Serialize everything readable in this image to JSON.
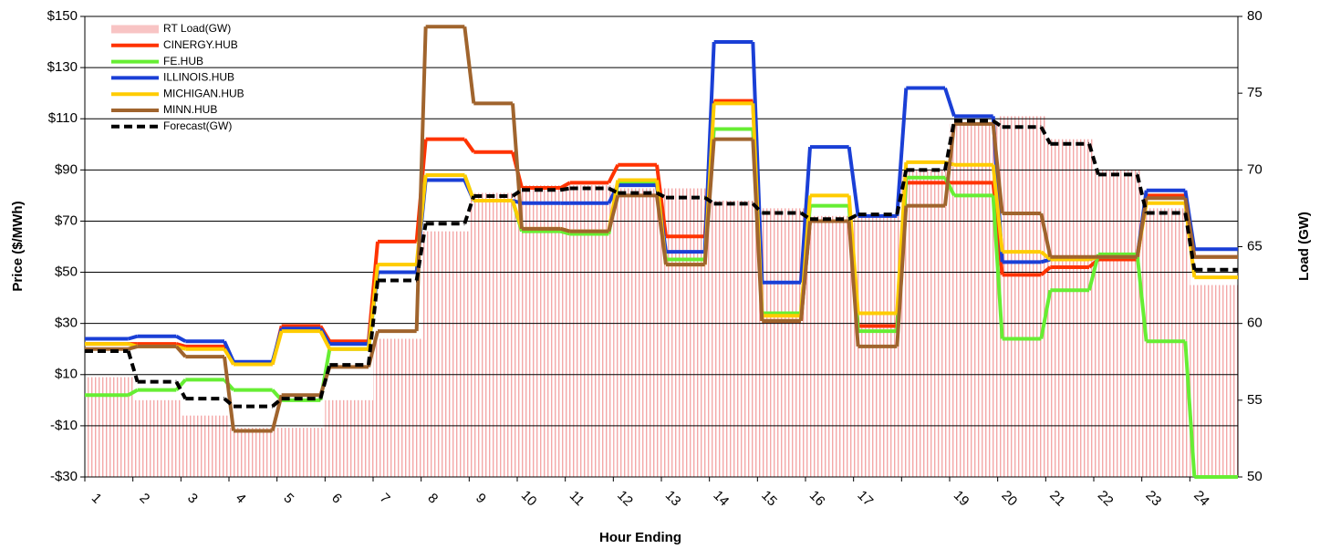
{
  "chart_data": {
    "type": "step",
    "x_label": "Hour Ending",
    "y_label": "Price ($/MWh)",
    "y2_label": "Load (GW)",
    "categories": [
      "1",
      "2",
      "3",
      "4",
      "5",
      "6",
      "7",
      "8",
      "9",
      "10",
      "11",
      "12",
      "13",
      "14",
      "15",
      "16",
      "17",
      null,
      "19",
      "20",
      "21",
      "22",
      "23",
      "24"
    ],
    "ylim": [
      -30,
      150
    ],
    "yticks": [
      {
        "value": -30,
        "label": "-$30"
      },
      {
        "value": -10,
        "label": "-$10"
      },
      {
        "value": 10,
        "label": "$10"
      },
      {
        "value": 30,
        "label": "$30"
      },
      {
        "value": 50,
        "label": "$50"
      },
      {
        "value": 70,
        "label": "$70"
      },
      {
        "value": 90,
        "label": "$90"
      },
      {
        "value": 110,
        "label": "$110"
      },
      {
        "value": 130,
        "label": "$130"
      },
      {
        "value": 150,
        "label": "$150"
      }
    ],
    "y2lim": [
      50,
      80
    ],
    "y2ticks": [
      50,
      55,
      60,
      65,
      70,
      75,
      80
    ],
    "grid": true,
    "legend": "top-left",
    "series": [
      {
        "name": "RT Load(GW)",
        "color": "#f2a0a0",
        "style": "bars",
        "axis": "y2",
        "values": [
          56.5,
          55,
          54,
          53.2,
          53.2,
          55,
          59,
          66,
          68.5,
          69,
          69,
          68.8,
          68.8,
          68,
          67.5,
          67,
          67,
          70,
          73,
          73.5,
          72,
          70,
          67.5,
          62.5
        ]
      },
      {
        "name": "CINERGY.HUB",
        "color": "#ff3300",
        "style": "solid",
        "values": [
          22,
          22,
          21,
          14,
          29,
          23,
          62,
          102,
          97,
          83,
          85,
          92,
          64,
          117,
          31,
          70,
          29,
          85,
          85,
          49,
          52,
          55,
          80,
          56
        ]
      },
      {
        "name": "FE.HUB",
        "color": "#66ee33",
        "style": "solid",
        "values": [
          2,
          4,
          8,
          4,
          0,
          20,
          50,
          88,
          78,
          66,
          65,
          85,
          55,
          106,
          34,
          76,
          27,
          87,
          80,
          24,
          43,
          57,
          23,
          -30
        ]
      },
      {
        "name": "ILLINOIS.HUB",
        "color": "#1a3fd6",
        "style": "solid",
        "values": [
          24,
          25,
          23,
          15,
          28,
          22,
          50,
          86,
          78,
          77,
          77,
          84,
          58,
          140,
          46,
          99,
          72,
          122,
          111,
          54,
          55,
          56,
          82,
          59
        ]
      },
      {
        "name": "MICHIGAN.HUB",
        "color": "#ffcc00",
        "style": "solid",
        "values": [
          22,
          21,
          20,
          14,
          27,
          20,
          53,
          88,
          78,
          67,
          66,
          86,
          53,
          116,
          33,
          80,
          34,
          93,
          92,
          58,
          55,
          56,
          77,
          48
        ]
      },
      {
        "name": "MINN.HUB",
        "color": "#a0642d",
        "style": "solid",
        "values": [
          20,
          21,
          17,
          -12,
          2,
          13,
          27,
          146,
          116,
          67,
          66,
          80,
          53,
          102,
          31,
          70,
          21,
          76,
          108,
          73,
          56,
          56,
          79,
          56
        ]
      },
      {
        "name": "Forecast(GW)",
        "color": "#000000",
        "style": "dash",
        "axis": "y2",
        "values": [
          58.2,
          56.2,
          55.1,
          54.6,
          55.1,
          57.3,
          62.8,
          66.5,
          68.3,
          68.7,
          68.8,
          68.5,
          68.2,
          67.8,
          67.2,
          66.8,
          67.1,
          70,
          73.2,
          72.8,
          71.7,
          69.7,
          67.2,
          63.5
        ]
      }
    ]
  }
}
